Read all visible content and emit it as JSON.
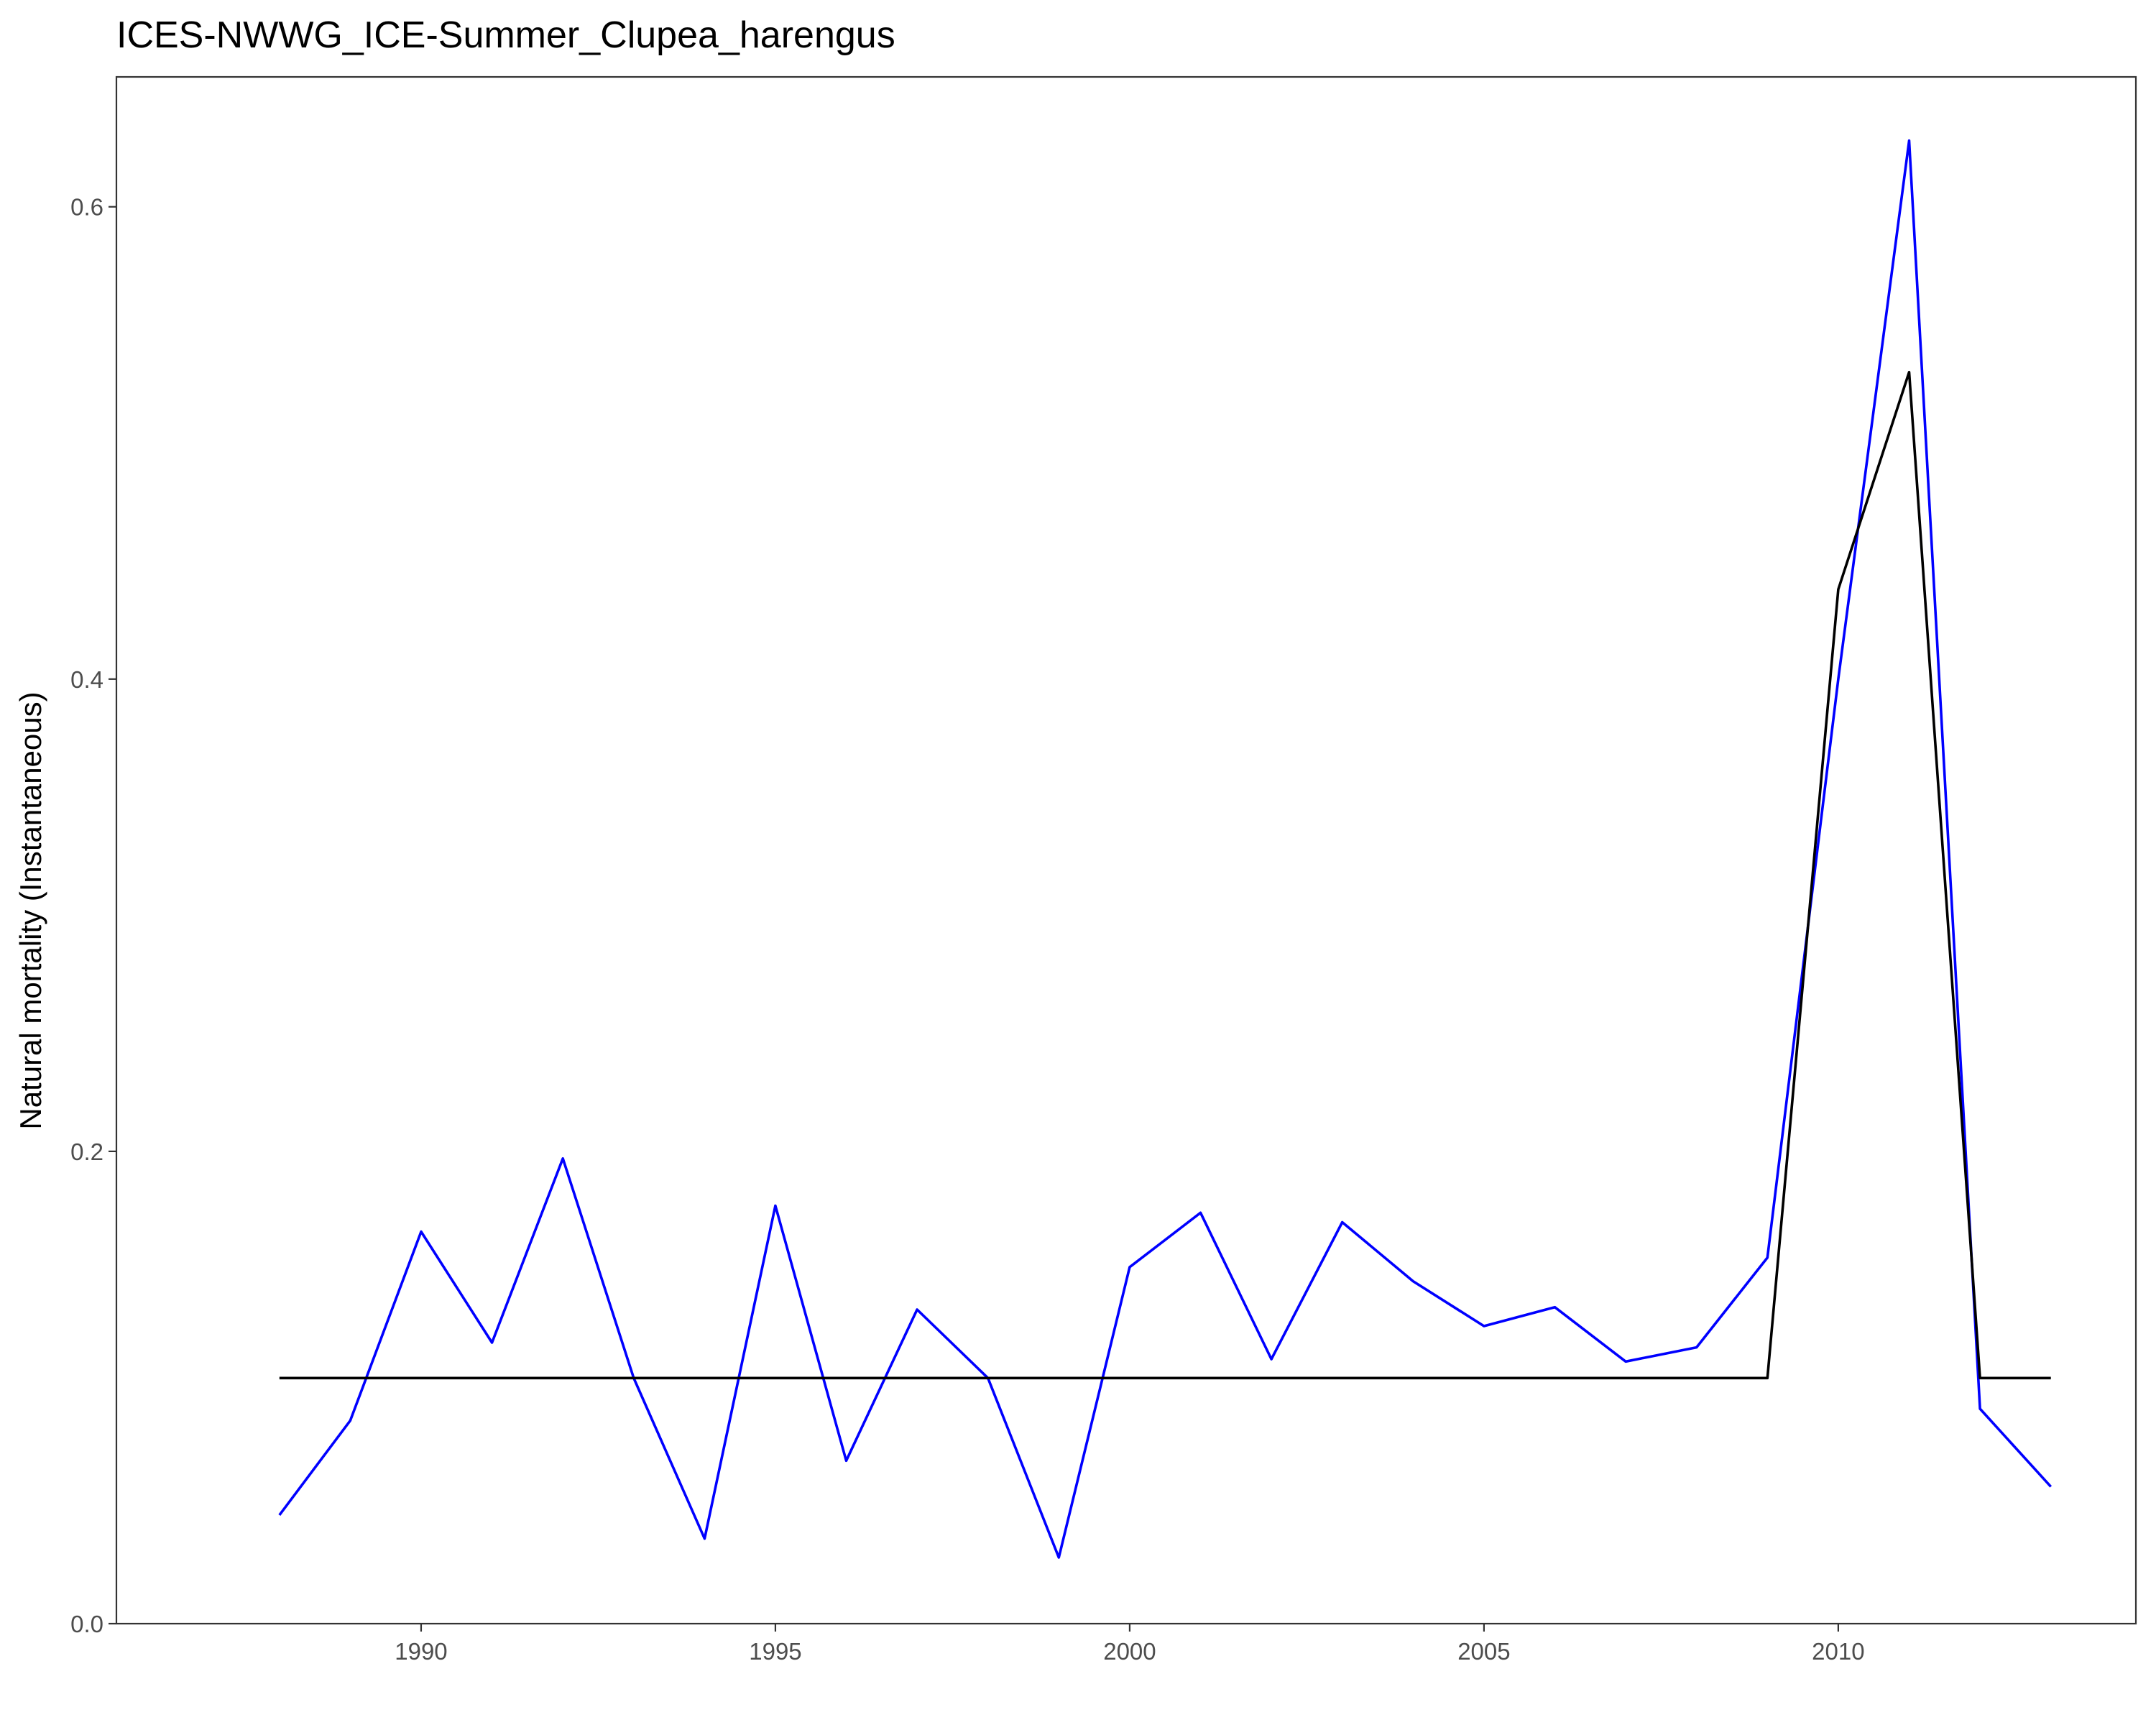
{
  "chart_data": {
    "type": "line",
    "title": "ICES-NWWG_ICE-Summer_Clupea_harengus",
    "xlabel": "",
    "ylabel": "Natural mortality (Instantaneous)",
    "xlim": [
      1985.7,
      2014.2
    ],
    "ylim": [
      0.0,
      0.655
    ],
    "xticks": [
      1990,
      1995,
      2000,
      2005,
      2010
    ],
    "xtick_labels": [
      "1990",
      "1995",
      "2000",
      "2005",
      "2010"
    ],
    "yticks": [
      0.0,
      0.2,
      0.4,
      0.6
    ],
    "ytick_labels": [
      "0.0",
      "0.2",
      "0.4",
      "0.6"
    ],
    "grid": false,
    "x": [
      1988,
      1989,
      1990,
      1991,
      1992,
      1993,
      1994,
      1995,
      1996,
      1997,
      1998,
      1999,
      2000,
      2001,
      2002,
      2003,
      2004,
      2005,
      2006,
      2007,
      2008,
      2009,
      2010,
      2011,
      2012,
      2013
    ],
    "series": [
      {
        "color": "#0000ff",
        "values": [
          0.046,
          0.086,
          0.166,
          0.119,
          0.197,
          0.104,
          0.036,
          0.177,
          0.069,
          0.133,
          0.104,
          0.028,
          0.151,
          0.174,
          0.112,
          0.17,
          0.145,
          0.126,
          0.134,
          0.111,
          0.117,
          0.155,
          0.4,
          0.628,
          0.091,
          0.058
        ]
      },
      {
        "color": "#000000",
        "values": [
          0.104,
          0.104,
          0.104,
          0.104,
          0.104,
          0.104,
          0.104,
          0.104,
          0.104,
          0.104,
          0.104,
          0.104,
          0.104,
          0.104,
          0.104,
          0.104,
          0.104,
          0.104,
          0.104,
          0.104,
          0.104,
          0.104,
          0.438,
          0.53,
          0.104,
          0.104
        ]
      }
    ]
  }
}
